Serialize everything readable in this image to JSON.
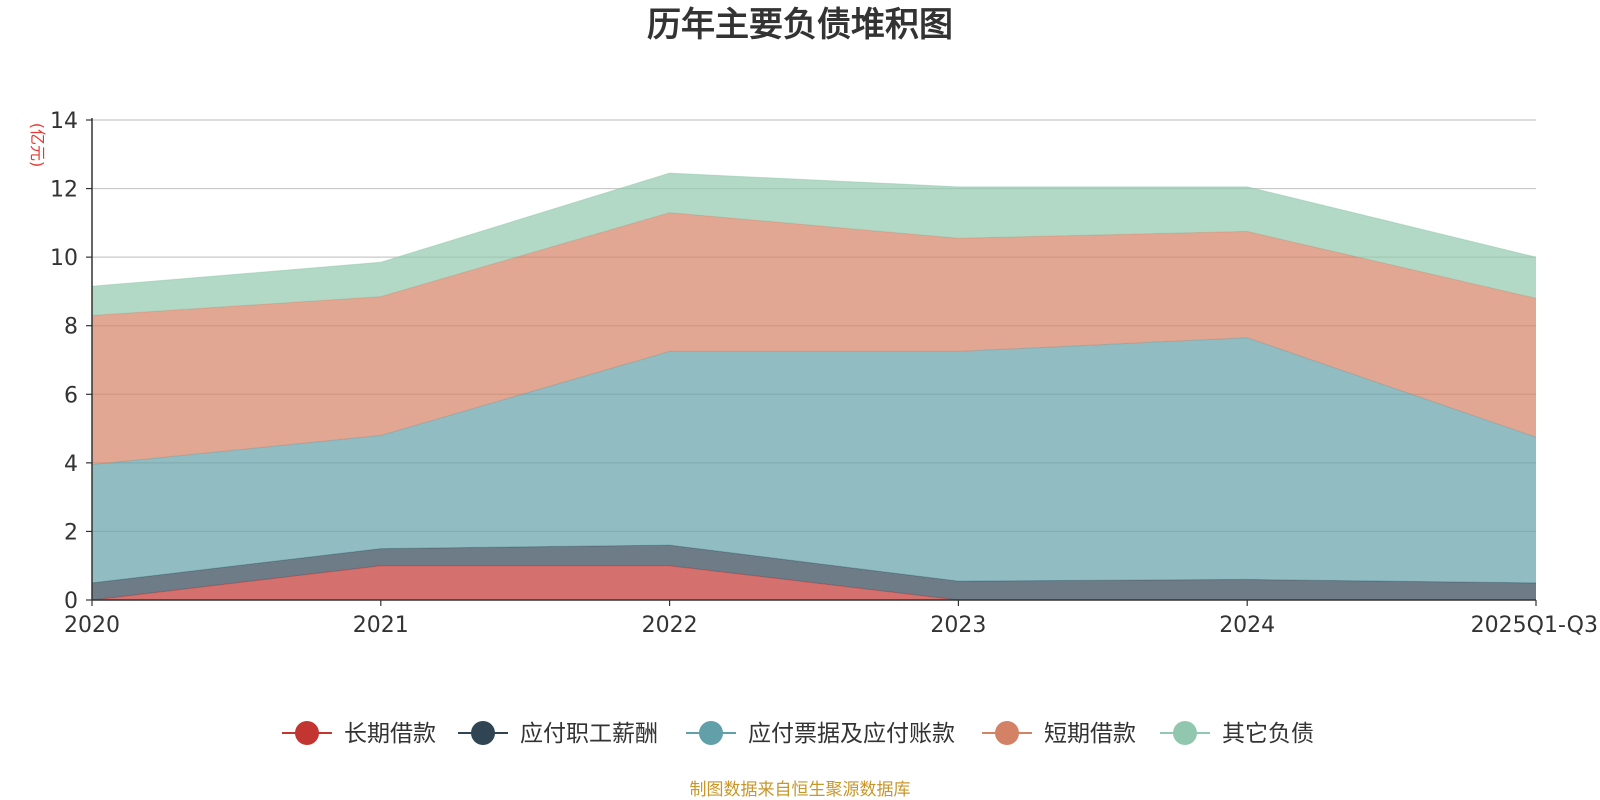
{
  "chart_data": {
    "type": "area",
    "stacked": true,
    "title": "历年主要负债堆积图",
    "y_unit_label": "(亿元)",
    "categories": [
      "2020",
      "2021",
      "2022",
      "2023",
      "2024",
      "2025Q1-Q3"
    ],
    "ylim": [
      0,
      14
    ],
    "y_ticks": [
      0,
      2,
      4,
      6,
      8,
      10,
      12,
      14
    ],
    "grid": true,
    "legend_position": "bottom",
    "series": [
      {
        "name": "长期借款",
        "color": "#c23531",
        "values": [
          0,
          1.0,
          1.0,
          0,
          0,
          0
        ]
      },
      {
        "name": "应付职工薪酬",
        "color": "#2f4554",
        "values": [
          0.5,
          0.5,
          0.6,
          0.55,
          0.6,
          0.5
        ]
      },
      {
        "name": "应付票据及应付账款",
        "color": "#61a0a8",
        "values": [
          3.45,
          3.3,
          5.65,
          6.7,
          7.05,
          4.25
        ]
      },
      {
        "name": "短期借款",
        "color": "#d48265",
        "values": [
          4.35,
          4.05,
          4.05,
          3.3,
          3.1,
          4.05
        ]
      },
      {
        "name": "其它负债",
        "color": "#91c7ae",
        "values": [
          0.85,
          1.0,
          1.15,
          1.5,
          1.3,
          1.2
        ]
      }
    ],
    "source_note": "制图数据来自恒生聚源数据库"
  }
}
